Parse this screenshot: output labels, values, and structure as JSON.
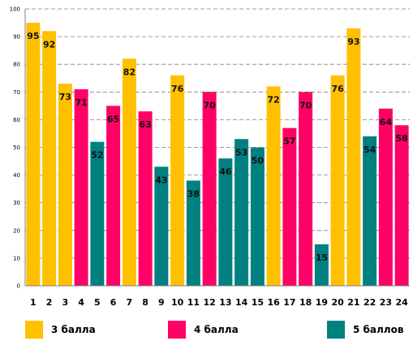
{
  "chart_data": {
    "type": "bar",
    "categories": [
      "1",
      "2",
      "3",
      "4",
      "5",
      "6",
      "7",
      "8",
      "9",
      "10",
      "11",
      "12",
      "13",
      "14",
      "15",
      "16",
      "17",
      "18",
      "19",
      "20",
      "21",
      "22",
      "23",
      "24"
    ],
    "values": [
      95,
      92,
      73,
      71,
      52,
      65,
      82,
      63,
      43,
      76,
      38,
      70,
      46,
      53,
      50,
      72,
      57,
      70,
      15,
      76,
      93,
      54,
      64,
      58
    ],
    "groups": [
      "3",
      "3",
      "3",
      "4",
      "5",
      "4",
      "3",
      "4",
      "5",
      "3",
      "5",
      "4",
      "5",
      "5",
      "5",
      "3",
      "4",
      "4",
      "5",
      "3",
      "3",
      "5",
      "4",
      "4"
    ],
    "ylim": [
      0,
      100
    ],
    "yticks": [
      "0",
      "10",
      "20",
      "30",
      "40",
      "50",
      "60",
      "70",
      "80",
      "90",
      "100"
    ],
    "grid": true,
    "legend_position": "bottom",
    "legend": [
      {
        "key": "3",
        "label": "3 балла",
        "color": "#FFC000"
      },
      {
        "key": "4",
        "label": "4 балла",
        "color": "#FF0066"
      },
      {
        "key": "5",
        "label": "5 баллов",
        "color": "#008080"
      }
    ]
  }
}
